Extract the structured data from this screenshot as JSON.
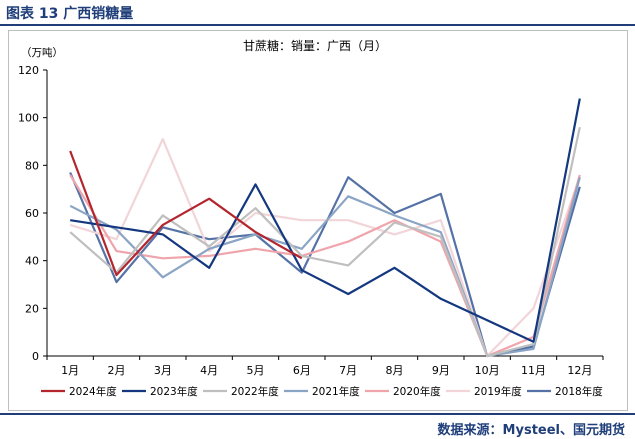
{
  "caption": "图表 13 广西销糖量",
  "source": "数据来源：Mysteel、国元期货",
  "chart_data": {
    "type": "line",
    "title": "甘蔗糖：销量：广西（月）",
    "ylabel": "（万吨）",
    "xlabel": "",
    "ylim": [
      0,
      120
    ],
    "yticks": [
      0,
      20,
      40,
      60,
      80,
      100,
      120
    ],
    "grid": false,
    "legend": "bottom",
    "categories": [
      "1月",
      "2月",
      "3月",
      "4月",
      "5月",
      "6月",
      "7月",
      "8月",
      "9月",
      "10月",
      "11月",
      "12月"
    ],
    "series": [
      {
        "name": "2024年度",
        "color": "#b3262e",
        "values": [
          86,
          34,
          55,
          66,
          52,
          41,
          null,
          null,
          null,
          null,
          null,
          null
        ]
      },
      {
        "name": "2023年度",
        "color": "#14387f",
        "values": [
          57,
          54,
          51,
          37,
          72,
          36,
          26,
          37,
          24,
          15,
          6,
          108
        ]
      },
      {
        "name": "2022年度",
        "color": "#bfbfbf",
        "values": [
          52,
          35,
          59,
          46,
          62,
          42,
          38,
          56,
          50,
          0,
          5,
          96
        ]
      },
      {
        "name": "2021年度",
        "color": "#8aa4c4",
        "values": [
          63,
          53,
          33,
          45,
          51,
          45,
          67,
          59,
          52,
          0,
          3,
          75
        ]
      },
      {
        "name": "2020年度",
        "color": "#f0a4ab",
        "values": [
          76,
          44,
          41,
          42,
          45,
          42,
          48,
          57,
          48,
          0,
          8,
          76
        ]
      },
      {
        "name": "2019年度",
        "color": "#f2d5d8",
        "values": [
          55,
          49,
          91,
          44,
          60,
          57,
          57,
          51,
          57,
          0,
          20,
          75
        ]
      },
      {
        "name": "2018年度",
        "color": "#5572a6",
        "values": [
          77,
          31,
          54,
          49,
          51,
          35,
          75,
          60,
          68,
          0,
          4,
          71
        ]
      }
    ]
  }
}
